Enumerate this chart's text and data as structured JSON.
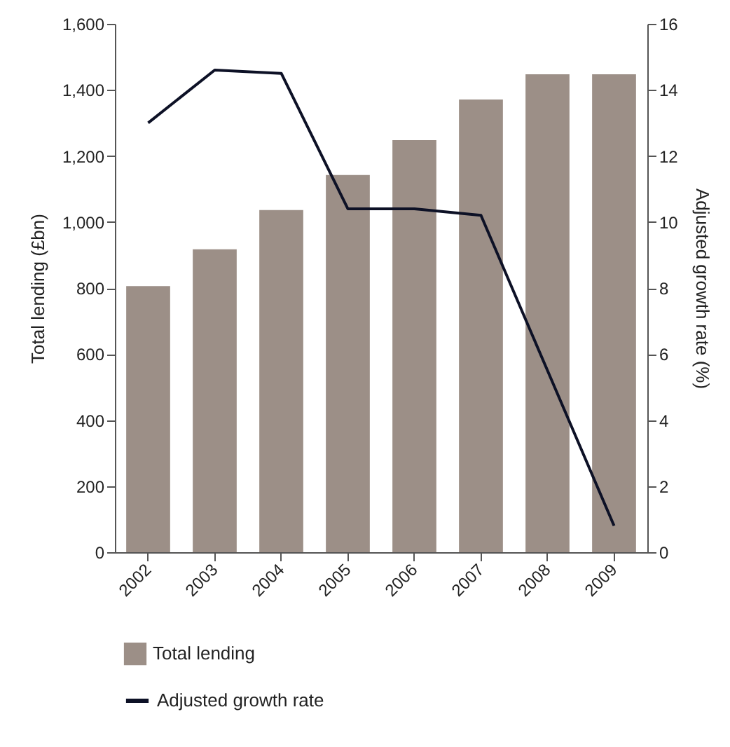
{
  "chart_data": {
    "type": "bar",
    "categories": [
      "2002",
      "2003",
      "2004",
      "2005",
      "2006",
      "2007",
      "2008",
      "2009"
    ],
    "ylabel": "Total lending (£bn)",
    "y2label": "Adjusted growth rate (%)",
    "ylim": [
      0,
      1600
    ],
    "yticks": [
      0,
      200,
      400,
      600,
      800,
      {
        "value": 1000,
        "label": "1,000"
      },
      {
        "value": 1200,
        "label": "1,200"
      },
      {
        "value": 1400,
        "label": "1,400"
      },
      {
        "value": 1600,
        "label": "1,600"
      }
    ],
    "y2lim": [
      0,
      16
    ],
    "y2ticks": [
      0,
      2,
      4,
      6,
      8,
      10,
      12,
      14,
      16
    ],
    "legend": "bottom left",
    "grid": false,
    "series": [
      {
        "name": "Total lending",
        "color": "#9c8f87",
        "values": [
          806,
          917,
          1036,
          1142,
          1248,
          1371,
          1447,
          1447
        ]
      },
      {
        "name": "Adjusted growth rate",
        "type": "line",
        "axis": "y2",
        "color": "#0d1126",
        "values": [
          13.0,
          14.6,
          14.5,
          10.4,
          10.4,
          10.2,
          5.5,
          0.8
        ]
      }
    ]
  }
}
